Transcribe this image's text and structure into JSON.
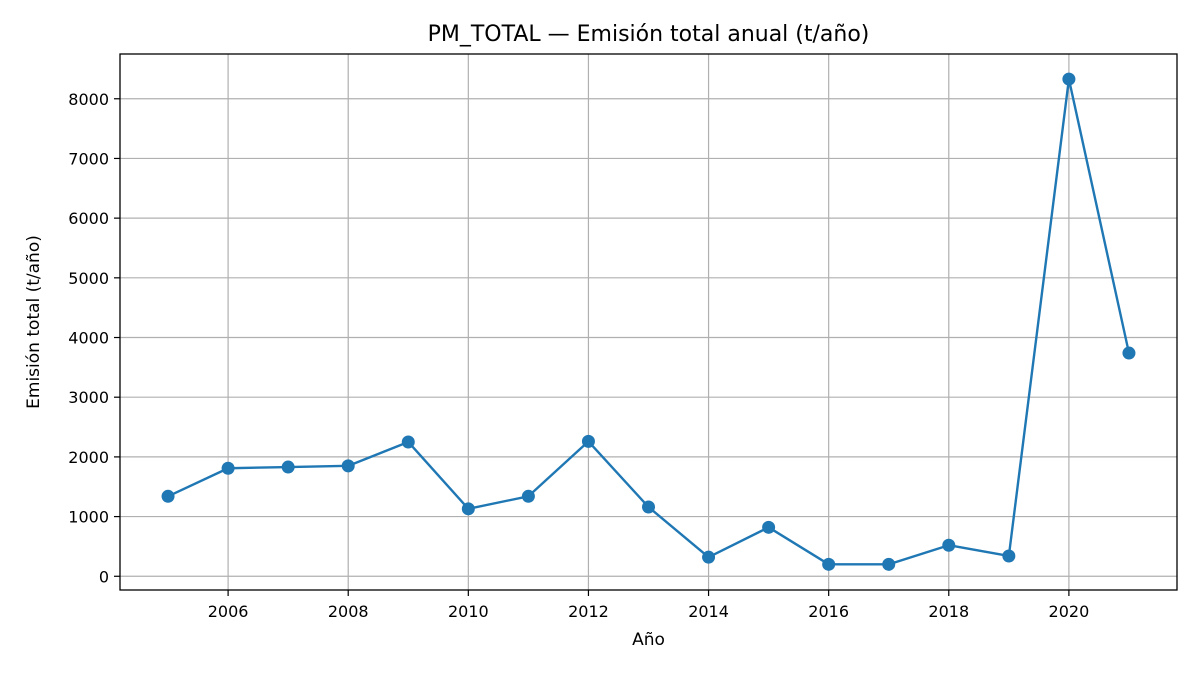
{
  "chart_data": {
    "type": "line",
    "title": "PM_TOTAL — Emisión total anual (t/año)",
    "xlabel": "Año",
    "ylabel": "Emisión total (t/año)",
    "xlim": [
      2004.2,
      2021.8
    ],
    "ylim": [
      -230,
      8750
    ],
    "xticks": [
      2006,
      2008,
      2010,
      2012,
      2014,
      2016,
      2018,
      2020
    ],
    "yticks": [
      0,
      1000,
      2000,
      3000,
      4000,
      5000,
      6000,
      7000,
      8000
    ],
    "grid": true,
    "line_color": "#1f77b4",
    "x": [
      2005,
      2006,
      2007,
      2008,
      2009,
      2010,
      2011,
      2012,
      2013,
      2014,
      2015,
      2016,
      2017,
      2018,
      2019,
      2020,
      2021
    ],
    "series": [
      {
        "values": [
          1340,
          1810,
          1830,
          1850,
          2250,
          1130,
          1340,
          2260,
          1160,
          320,
          820,
          200,
          200,
          520,
          340,
          8330,
          3740
        ]
      }
    ]
  }
}
